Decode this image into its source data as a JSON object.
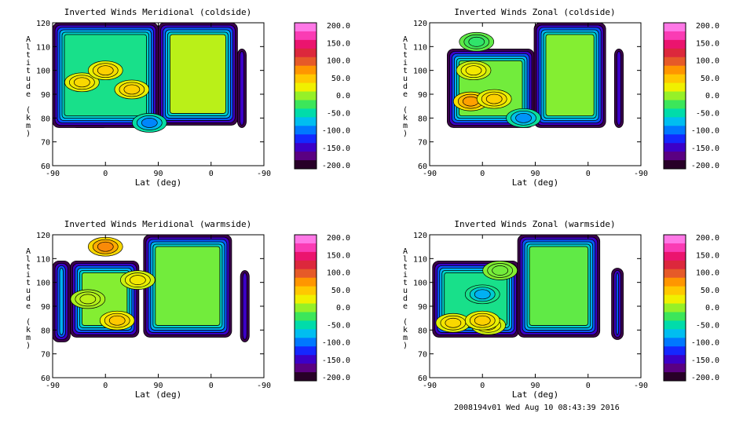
{
  "chart_data": [
    {
      "type": "heatmap",
      "title": "Inverted Winds Meridional (coldside)",
      "xlabel": "Lat (deg)",
      "ylabel": "Altitude (km)",
      "xticks": [
        "-90",
        "0",
        "90",
        "0",
        "-90"
      ],
      "yticks": [
        60,
        70,
        80,
        90,
        100,
        110,
        120
      ],
      "ylim": [
        60,
        120
      ],
      "colorbar": {
        "ticks": [
          "200.0",
          "150.0",
          "100.0",
          "50.0",
          "0.0",
          "-50.0",
          "-100.0",
          "-150.0",
          "-200.0"
        ],
        "range": [
          -200,
          200
        ]
      },
      "regions": [
        {
          "x": [
            -60,
            7
          ],
          "y": [
            76,
            109
          ],
          "level": 25
        },
        {
          "x": [
            -90,
            90
          ],
          "y": [
            76,
            120
          ],
          "level": -40
        },
        {
          "x": [
            90,
            -45
          ],
          "y": [
            77,
            120
          ],
          "level": 10
        },
        {
          "x": [
            -45,
            -60
          ],
          "y": [
            76,
            109
          ],
          "level": 20
        }
      ],
      "hotspots": [
        {
          "x": -40,
          "y": 95,
          "value": 40
        },
        {
          "x": 45,
          "y": 92,
          "value": 45
        },
        {
          "x": 0,
          "y": 100,
          "value": 45
        },
        {
          "x": 75,
          "y": 78,
          "value": -95
        }
      ]
    },
    {
      "type": "heatmap",
      "title": "Inverted Winds Zonal (coldside)",
      "xlabel": "Lat (deg)",
      "ylabel": "Altitude (km)",
      "xticks": [
        "-90",
        "0",
        "90",
        "0",
        "-90"
      ],
      "yticks": [
        60,
        70,
        80,
        90,
        100,
        110,
        120
      ],
      "ylim": [
        60,
        120
      ],
      "colorbar": {
        "ticks": [
          "200.0",
          "150.0",
          "100.0",
          "50.0",
          "0.0",
          "-50.0",
          "-100.0",
          "-150.0",
          "-200.0"
        ],
        "range": [
          -200,
          200
        ]
      },
      "regions": [
        {
          "x": [
            -60,
            88
          ],
          "y": [
            76,
            109
          ],
          "level": -10
        },
        {
          "x": [
            92,
            -30
          ],
          "y": [
            76,
            120
          ],
          "level": -5
        },
        {
          "x": [
            -45,
            -60
          ],
          "y": [
            76,
            109
          ],
          "level": -10
        }
      ],
      "hotspots": [
        {
          "x": -20,
          "y": 87,
          "value": 70
        },
        {
          "x": 20,
          "y": 88,
          "value": 45
        },
        {
          "x": -15,
          "y": 100,
          "value": 30
        },
        {
          "x": 70,
          "y": 80,
          "value": -90
        },
        {
          "x": -10,
          "y": 112,
          "value": -30
        }
      ]
    },
    {
      "type": "heatmap",
      "title": "Inverted Winds Meridional (warmside)",
      "xlabel": "Lat (deg)",
      "ylabel": "Altitude (km)",
      "xticks": [
        "-90",
        "0",
        "90",
        "0",
        "-90"
      ],
      "yticks": [
        60,
        70,
        80,
        90,
        100,
        110,
        120
      ],
      "ylim": [
        60,
        120
      ],
      "colorbar": {
        "ticks": [
          "200.0",
          "150.0",
          "100.0",
          "50.0",
          "0.0",
          "-50.0",
          "-100.0",
          "-150.0",
          "-200.0"
        ],
        "range": [
          -200,
          200
        ]
      },
      "regions": [
        {
          "x": [
            -60,
            57
          ],
          "y": [
            77,
            109
          ],
          "level": -5
        },
        {
          "x": [
            -90,
            -60
          ],
          "y": [
            75,
            109
          ],
          "level": -15
        },
        {
          "x": [
            115,
            -35
          ],
          "y": [
            77,
            120
          ],
          "level": -10
        },
        {
          "x": [
            -50,
            -65
          ],
          "y": [
            75,
            105
          ],
          "level": -40
        }
      ],
      "hotspots": [
        {
          "x": 0,
          "y": 115,
          "value": 80
        },
        {
          "x": 20,
          "y": 84,
          "value": 50
        },
        {
          "x": 55,
          "y": 101,
          "value": 30
        },
        {
          "x": -30,
          "y": 93,
          "value": 10
        }
      ]
    },
    {
      "type": "heatmap",
      "title": "Inverted Winds Zonal (warmside)",
      "xlabel": "Lat (deg)",
      "ylabel": "Altitude (km)",
      "xticks": [
        "-90",
        "0",
        "90",
        "0",
        "-90"
      ],
      "yticks": [
        60,
        70,
        80,
        90,
        100,
        110,
        120
      ],
      "ylim": [
        60,
        120
      ],
      "colorbar": {
        "ticks": [
          "200.0",
          "150.0",
          "100.0",
          "50.0",
          "0.0",
          "-50.0",
          "-100.0",
          "-150.0",
          "-200.0"
        ],
        "range": [
          -200,
          200
        ]
      },
      "regions": [
        {
          "x": [
            -85,
            62
          ],
          "y": [
            77,
            109
          ],
          "level": -40
        },
        {
          "x": [
            120,
            -20
          ],
          "y": [
            77,
            120
          ],
          "level": -15
        },
        {
          "x": [
            -40,
            -60
          ],
          "y": [
            76,
            106
          ],
          "level": -30
        }
      ],
      "hotspots": [
        {
          "x": -50,
          "y": 83,
          "value": 40
        },
        {
          "x": 10,
          "y": 82,
          "value": 30
        },
        {
          "x": 0,
          "y": 95,
          "value": -80
        },
        {
          "x": 0,
          "y": 84,
          "value": 45
        },
        {
          "x": 30,
          "y": 105,
          "value": -10
        }
      ]
    }
  ],
  "footer": "2008194v01 Wed Aug 10 08:43:39 2016"
}
